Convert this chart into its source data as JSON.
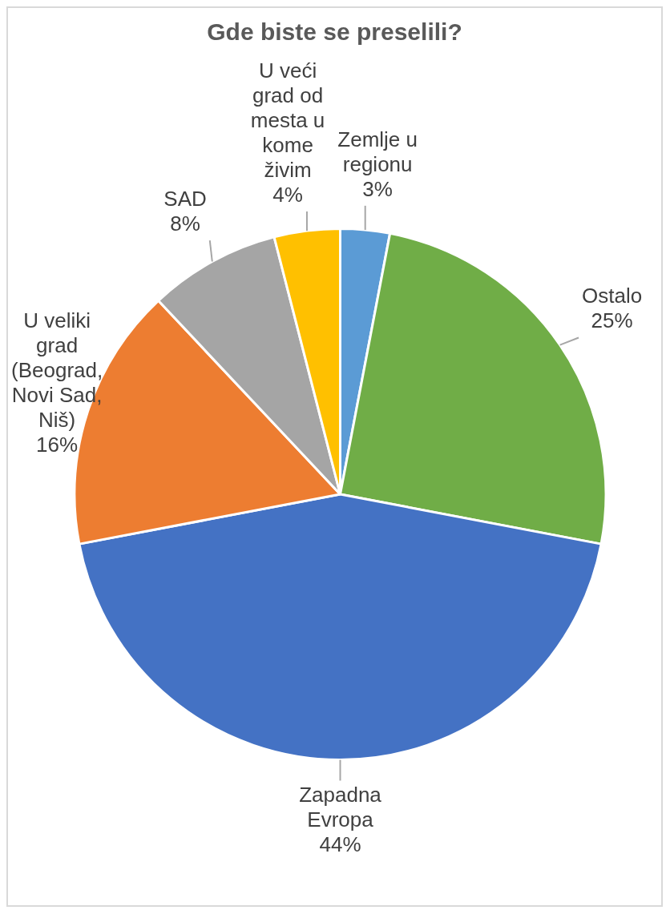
{
  "chart_data": {
    "type": "pie",
    "title": "Gde biste se preselili?",
    "categories": [
      "Zemlje u regionu",
      "Ostalo",
      "Zapadna Evropa",
      "U veliki grad (Beograd, Novi Sad, Niš)",
      "SAD",
      "U veći grad od mesta u kome živim"
    ],
    "values": [
      3,
      25,
      44,
      16,
      8,
      4
    ],
    "colors": [
      "#5b9bd5",
      "#70ad47",
      "#4472c4",
      "#ed7d31",
      "#a5a5a5",
      "#ffc000"
    ],
    "value_labels": [
      "3%",
      "25%",
      "44%",
      "16%",
      "8%",
      "4%"
    ],
    "legend": false
  }
}
